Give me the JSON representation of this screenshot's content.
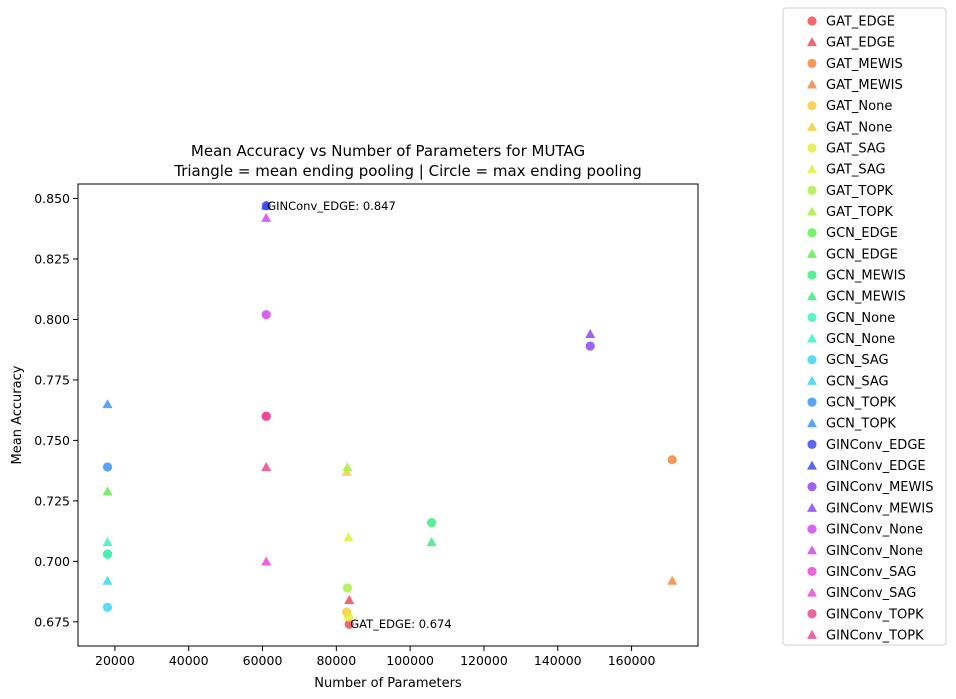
{
  "chart_data": {
    "type": "scatter",
    "title": "Mean Accuracy vs Number of Parameters for MUTAG",
    "subtitle": "Triangle = mean ending pooling | Circle = max ending pooling",
    "xlabel": "Number of Parameters",
    "ylabel": "Mean Accuracy",
    "xlim": [
      10000,
      178000
    ],
    "ylim": [
      0.665,
      0.856
    ],
    "xticks": [
      20000,
      40000,
      60000,
      80000,
      100000,
      120000,
      140000,
      160000
    ],
    "xtick_labels": [
      "20000",
      "40000",
      "60000",
      "80000",
      "100000",
      "120000",
      "140000",
      "160000"
    ],
    "yticks": [
      0.675,
      0.7,
      0.725,
      0.75,
      0.775,
      0.8,
      0.825,
      0.85
    ],
    "ytick_labels": [
      "0.675",
      "0.700",
      "0.725",
      "0.750",
      "0.775",
      "0.800",
      "0.825",
      "0.850"
    ],
    "grid": false,
    "legend_position": "outside-right",
    "series": [
      {
        "name": "GAT_EDGE",
        "marker": "circle",
        "color": "#f4434d",
        "points": [
          [
            83500,
            0.674
          ]
        ]
      },
      {
        "name": "GAT_EDGE",
        "marker": "triangle",
        "color": "#f4434d",
        "points": [
          [
            83500,
            0.684
          ]
        ]
      },
      {
        "name": "GAT_MEWIS",
        "marker": "circle",
        "color": "#f58334",
        "points": [
          [
            171000,
            0.742
          ]
        ]
      },
      {
        "name": "GAT_MEWIS",
        "marker": "triangle",
        "color": "#f58334",
        "points": [
          [
            171000,
            0.692
          ]
        ]
      },
      {
        "name": "GAT_None",
        "marker": "circle",
        "color": "#f7c934",
        "points": [
          [
            82800,
            0.679
          ]
        ]
      },
      {
        "name": "GAT_None",
        "marker": "triangle",
        "color": "#f7c934",
        "points": [
          [
            82800,
            0.737
          ]
        ]
      },
      {
        "name": "GAT_SAG",
        "marker": "circle",
        "color": "#e2ec35",
        "points": [
          [
            83300,
            0.677
          ]
        ]
      },
      {
        "name": "GAT_SAG",
        "marker": "triangle",
        "color": "#e2ec35",
        "points": [
          [
            83300,
            0.71
          ]
        ]
      },
      {
        "name": "GAT_TOPK",
        "marker": "circle",
        "color": "#a6ee3c",
        "points": [
          [
            83000,
            0.689
          ]
        ]
      },
      {
        "name": "GAT_TOPK",
        "marker": "triangle",
        "color": "#a6ee3c",
        "points": [
          [
            83000,
            0.739
          ]
        ]
      },
      {
        "name": "GCN_EDGE",
        "marker": "circle",
        "color": "#58f044",
        "points": [
          [
            18000,
            0.703
          ]
        ]
      },
      {
        "name": "GCN_EDGE",
        "marker": "triangle",
        "color": "#58f044",
        "points": [
          [
            18000,
            0.729
          ]
        ]
      },
      {
        "name": "GCN_MEWIS",
        "marker": "circle",
        "color": "#34ec7c",
        "points": [
          [
            105800,
            0.716
          ]
        ]
      },
      {
        "name": "GCN_MEWIS",
        "marker": "triangle",
        "color": "#34ec7c",
        "points": [
          [
            105800,
            0.708
          ]
        ]
      },
      {
        "name": "GCN_None",
        "marker": "circle",
        "color": "#34f0c4",
        "points": [
          [
            18000,
            0.703
          ]
        ]
      },
      {
        "name": "GCN_None",
        "marker": "triangle",
        "color": "#34f0c4",
        "points": [
          [
            18000,
            0.708
          ]
        ]
      },
      {
        "name": "GCN_SAG",
        "marker": "circle",
        "color": "#34d2f4",
        "points": [
          [
            18000,
            0.681
          ]
        ]
      },
      {
        "name": "GCN_SAG",
        "marker": "triangle",
        "color": "#34d2f4",
        "points": [
          [
            18000,
            0.692
          ]
        ]
      },
      {
        "name": "GCN_TOPK",
        "marker": "circle",
        "color": "#3490f4",
        "points": [
          [
            18000,
            0.739
          ]
        ]
      },
      {
        "name": "GCN_TOPK",
        "marker": "triangle",
        "color": "#3490f4",
        "points": [
          [
            18000,
            0.765
          ]
        ]
      },
      {
        "name": "GINConv_EDGE",
        "marker": "circle",
        "color": "#3444f0",
        "points": [
          [
            61000,
            0.847
          ]
        ]
      },
      {
        "name": "GINConv_EDGE",
        "marker": "triangle",
        "color": "#3444f0",
        "points": [
          [
            61000,
            0.847
          ]
        ]
      },
      {
        "name": "GINConv_MEWIS",
        "marker": "circle",
        "color": "#8a40f0",
        "points": [
          [
            148800,
            0.789
          ]
        ]
      },
      {
        "name": "GINConv_MEWIS",
        "marker": "triangle",
        "color": "#8a40f0",
        "points": [
          [
            148800,
            0.794
          ]
        ]
      },
      {
        "name": "GINConv_None",
        "marker": "circle",
        "color": "#d040f0",
        "points": [
          [
            61000,
            0.802
          ]
        ]
      },
      {
        "name": "GINConv_None",
        "marker": "triangle",
        "color": "#d040f0",
        "points": [
          [
            61000,
            0.842
          ]
        ]
      },
      {
        "name": "GINConv_SAG",
        "marker": "circle",
        "color": "#f040d4",
        "points": [
          [
            61000,
            0.76
          ]
        ]
      },
      {
        "name": "GINConv_SAG",
        "marker": "triangle",
        "color": "#f040d4",
        "points": [
          [
            61000,
            0.7
          ]
        ]
      },
      {
        "name": "GINConv_TOPK",
        "marker": "circle",
        "color": "#f04088",
        "points": [
          [
            61000,
            0.76
          ]
        ]
      },
      {
        "name": "GINConv_TOPK",
        "marker": "triangle",
        "color": "#f04088",
        "points": [
          [
            61000,
            0.739
          ]
        ]
      }
    ],
    "annotations": [
      {
        "text": "GINConv_EDGE: 0.847",
        "x": 61000,
        "y": 0.847
      },
      {
        "text": "GAT_EDGE: 0.674",
        "x": 83500,
        "y": 0.674
      }
    ]
  }
}
